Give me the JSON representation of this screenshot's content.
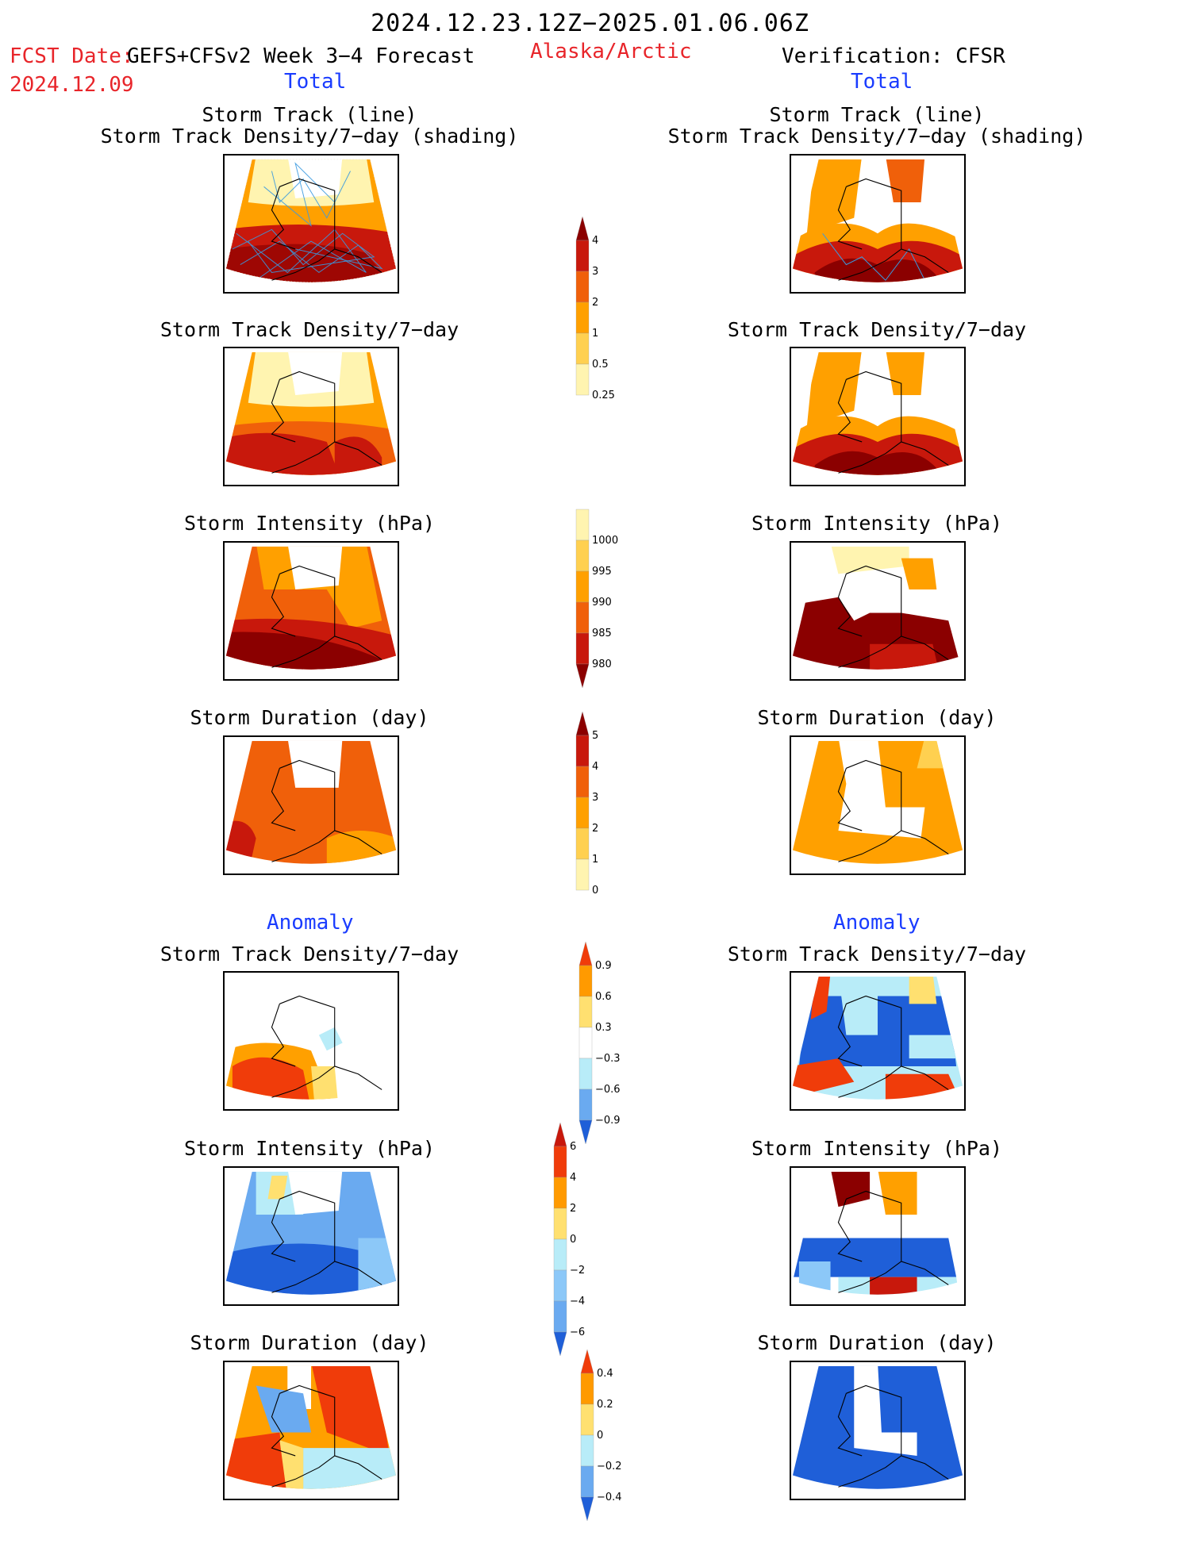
{
  "header": {
    "period": "2024.12.23.12Z−2025.01.06.06Z",
    "fcst_label": "FCST Date:",
    "fcst_model": "GEFS+CFSv2 Week 3−4 Forecast",
    "fcst_date": "2024.12.09",
    "region": "Alaska/Arctic",
    "verification": "Verification: CFSR"
  },
  "sections": {
    "total_left": "Total",
    "total_right": "Total",
    "anomaly_left": "Anomaly",
    "anomaly_right": "Anomaly"
  },
  "panel_titles": {
    "track_line": "Storm Track (line)",
    "track_density_shading": "Storm Track Density/7−day (shading)",
    "track_density": "Storm Track Density/7−day",
    "intensity": "Storm Intensity (hPa)",
    "duration": "Storm Duration (day)"
  },
  "colorbars": {
    "density_total": {
      "labels": [
        "4",
        "3",
        "2",
        "1",
        "0.5",
        "0.25"
      ],
      "colors": [
        "#8b0000",
        "#c8180c",
        "#f0600a",
        "#ffa000",
        "#ffd050",
        "#fff4b0"
      ]
    },
    "intensity_total": {
      "labels": [
        "1000",
        "995",
        "990",
        "985",
        "980"
      ],
      "colors": [
        "#fff4b0",
        "#ffd050",
        "#ffa000",
        "#f0600a",
        "#c8180c",
        "#8b0000"
      ]
    },
    "duration_total": {
      "labels": [
        "5",
        "4",
        "3",
        "2",
        "1",
        "0"
      ],
      "colors": [
        "#8b0000",
        "#c8180c",
        "#f0600a",
        "#ffa000",
        "#ffd050",
        "#fff4b0"
      ]
    },
    "density_anom": {
      "labels": [
        "0.9",
        "0.6",
        "0.3",
        "−0.3",
        "−0.6",
        "−0.9"
      ],
      "colors": [
        "#f03c0a",
        "#ff9a00",
        "#ffe070",
        "#ffffff",
        "#b8ecf8",
        "#6aaaf0",
        "#1f5fd8"
      ]
    },
    "intensity_anom": {
      "labels": [
        "6",
        "4",
        "2",
        "0",
        "−2",
        "−4",
        "−6"
      ],
      "colors": [
        "#c8180c",
        "#f03c0a",
        "#ff9a00",
        "#ffe070",
        "#b8ecf8",
        "#8cc8f8",
        "#6aaaf0",
        "#1f5fd8"
      ]
    },
    "duration_anom": {
      "labels": [
        "0.4",
        "0.2",
        "0",
        "−0.2",
        "−0.4"
      ],
      "colors": [
        "#f03c0a",
        "#ff9a00",
        "#ffe070",
        "#b8ecf8",
        "#6aaaf0",
        "#1f5fd8"
      ]
    }
  }
}
